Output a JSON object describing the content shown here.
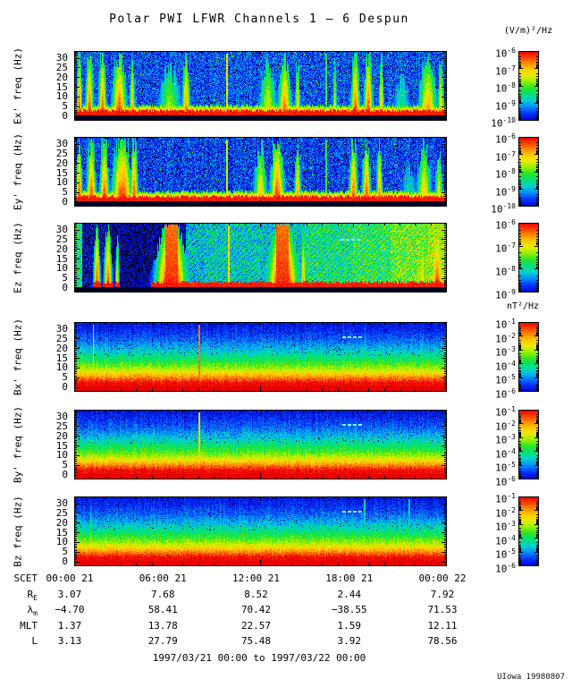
{
  "title": "Polar PWI LFWR Channels 1 – 6 Despun",
  "units_top": "(V/m)²/Hz",
  "units_mid": "nT²/Hz",
  "footer": "1997/03/21 00:00 to 1997/03/22 00:00",
  "credit": "UIowa 19980807",
  "log_base": "10",
  "chart_data": {
    "type": "heatmap",
    "title": "Polar PWI LFWR Channels 1 – 6 Despun",
    "subtitle": "1997/03/21 00:00 to 1997/03/22 00:00",
    "x_axis": {
      "label": "SCET",
      "tick_labels": [
        "00:00 21",
        "06:00 21",
        "12:00 21",
        "18:00 21",
        "00:00 22"
      ],
      "range_hours": [
        0,
        24
      ],
      "major_tick_hours": 6,
      "minor_tick_hours": 1
    },
    "y_axis": {
      "ticks": [
        0,
        5,
        10,
        15,
        20,
        25,
        30
      ],
      "range": [
        0,
        33
      ],
      "unit": "Hz"
    },
    "colorbar_units": {
      "electric": "(V/m)²/Hz",
      "magnetic": "nT²/Hz"
    },
    "panels": [
      {
        "id": "ex",
        "ylabel": "Ex' freq (Hz)",
        "field": "electric",
        "colorbar_exponents": [
          -6,
          -7,
          -8,
          -9,
          -10
        ],
        "render": {
          "mode": "E",
          "bg": 0.24,
          "bursts": [
            [
              0.013,
              0.008,
              1
            ],
            [
              0.04,
              0.012,
              1
            ],
            [
              0.075,
              0.012,
              1
            ],
            [
              0.12,
              0.022,
              1
            ],
            [
              0.155,
              0.008,
              0.9
            ],
            [
              0.255,
              0.035,
              0.72
            ],
            [
              0.3,
              0.012,
              0.95
            ],
            [
              0.52,
              0.025,
              0.8
            ],
            [
              0.565,
              0.02,
              0.95
            ],
            [
              0.6,
              0.008,
              0.85
            ],
            [
              0.7,
              0.006,
              0.8
            ],
            [
              0.755,
              0.014,
              1
            ],
            [
              0.79,
              0.014,
              1
            ],
            [
              0.825,
              0.008,
              0.9
            ],
            [
              0.88,
              0.03,
              0.55
            ],
            [
              0.95,
              0.028,
              0.9
            ],
            [
              0.985,
              0.01,
              0.85
            ]
          ],
          "vlines": [
            [
              0.41,
              0.78
            ],
            [
              0.676,
              0.6
            ]
          ]
        }
      },
      {
        "id": "ey",
        "ylabel": "Ey' freq (Hz)",
        "field": "electric",
        "colorbar_exponents": [
          -6,
          -7,
          -8,
          -9,
          -10
        ],
        "render": {
          "mode": "E",
          "bg": 0.22,
          "bursts": [
            [
              0.012,
              0.01,
              1
            ],
            [
              0.045,
              0.014,
              1
            ],
            [
              0.08,
              0.014,
              1
            ],
            [
              0.128,
              0.03,
              1.05
            ],
            [
              0.16,
              0.012,
              1
            ],
            [
              0.5,
              0.02,
              0.85
            ],
            [
              0.545,
              0.022,
              1
            ],
            [
              0.6,
              0.01,
              0.9
            ],
            [
              0.75,
              0.013,
              1
            ],
            [
              0.785,
              0.013,
              1
            ],
            [
              0.82,
              0.009,
              0.95
            ],
            [
              0.9,
              0.03,
              0.5
            ],
            [
              0.94,
              0.022,
              0.85
            ],
            [
              0.98,
              0.012,
              0.8
            ]
          ],
          "vlines": [
            [
              0.41,
              0.72
            ],
            [
              0.676,
              0.58
            ]
          ]
        }
      },
      {
        "id": "ez",
        "ylabel": "Ez freq (Hz)",
        "field": "electric",
        "colorbar_exponents": [
          -6,
          -7,
          -8,
          -9
        ],
        "render": {
          "mode": "Ez",
          "band_start": 0.28,
          "segments": [
            [
              0,
              0.5
            ],
            [
              0.02,
              0.13
            ],
            [
              0.1,
              0.08
            ],
            [
              0.2,
              0.1
            ],
            [
              0.3,
              0.38
            ],
            [
              0.35,
              0.42
            ],
            [
              0.5,
              0.4
            ],
            [
              0.62,
              0.48
            ],
            [
              0.75,
              0.52
            ],
            [
              0.85,
              0.6
            ],
            [
              0.95,
              0.66
            ]
          ],
          "bursts": [
            [
              0.06,
              0.01,
              1
            ],
            [
              0.09,
              0.012,
              1
            ],
            [
              0.115,
              0.006,
              0.8
            ],
            [
              0.26,
              0.045,
              1.15
            ],
            [
              0.56,
              0.045,
              1.15
            ],
            [
              0.615,
              0.008,
              0.9
            ],
            [
              0.935,
              0.012,
              0.85
            ],
            [
              0.975,
              0.02,
              1
            ]
          ],
          "vlines": [
            [
              0.415,
              0.8
            ]
          ],
          "dashes": [
            [
              0.715,
              0.765,
              25
            ]
          ]
        }
      },
      {
        "id": "bx",
        "ylabel": "Bx' freq (Hz)",
        "field": "magnetic",
        "colorbar_exponents": [
          -1,
          -2,
          -3,
          -4,
          -5,
          -6
        ],
        "render": {
          "mode": "B",
          "vlines": [
            [
              0.05,
              0.7
            ],
            [
              0.335,
              0.92
            ]
          ],
          "dashes": [
            [
              0.72,
              0.765,
              26
            ]
          ]
        }
      },
      {
        "id": "by",
        "ylabel": "By' freq (Hz)",
        "field": "magnetic",
        "colorbar_exponents": [
          -1,
          -2,
          -3,
          -4,
          -5,
          -6
        ],
        "render": {
          "mode": "B",
          "vlines": [
            [
              0.335,
              0.8
            ]
          ],
          "dashes": [
            [
              0.72,
              0.765,
              26
            ]
          ]
        }
      },
      {
        "id": "bz",
        "ylabel": "Bz freq (Hz)",
        "field": "magnetic",
        "colorbar_exponents": [
          -1,
          -2,
          -3,
          -4,
          -5,
          -6
        ],
        "render": {
          "mode": "B",
          "vlines": [
            [
              0.78,
              0.45
            ],
            [
              0.9,
              0.45
            ]
          ],
          "spike": [
            0.043,
            0.003,
            0.85
          ],
          "dashes": [
            [
              0.72,
              0.765,
              26
            ]
          ]
        }
      }
    ],
    "ephemeris": {
      "rows": [
        {
          "label": "SCET",
          "sub": "",
          "values": [
            "00:00 21",
            "06:00 21",
            "12:00 21",
            "18:00 21",
            "00:00 22"
          ]
        },
        {
          "label": "R",
          "sub": "E",
          "values": [
            "3.07",
            "7.68",
            "8.52",
            "2.44",
            "7.92"
          ]
        },
        {
          "label": "λ",
          "sub": "m",
          "values": [
            "−4.70",
            "58.41",
            "70.42",
            "−38.55",
            "71.53"
          ]
        },
        {
          "label": "MLT",
          "sub": "",
          "values": [
            "1.37",
            "13.78",
            "22.57",
            "1.59",
            "12.11"
          ]
        },
        {
          "label": "L",
          "sub": "",
          "values": [
            "3.13",
            "27.79",
            "75.48",
            "3.92",
            "78.56"
          ]
        }
      ]
    }
  }
}
